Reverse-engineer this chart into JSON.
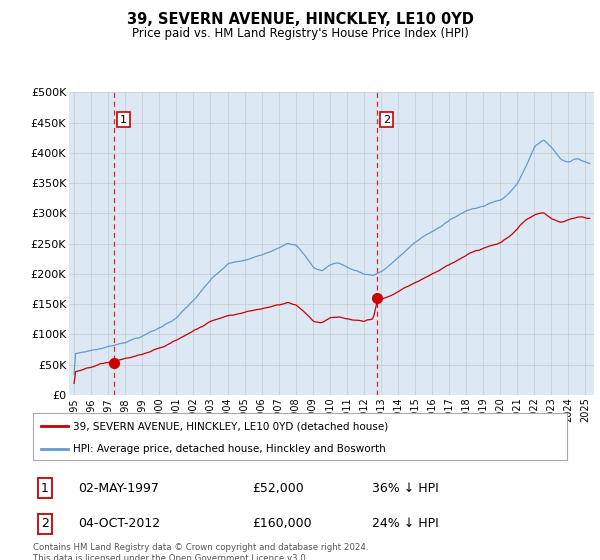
{
  "title": "39, SEVERN AVENUE, HINCKLEY, LE10 0YD",
  "subtitle": "Price paid vs. HM Land Registry's House Price Index (HPI)",
  "background_color": "#dce9f5",
  "plot_bg_color": "#dce9f5",
  "ylim": [
    0,
    500000
  ],
  "yticks": [
    0,
    50000,
    100000,
    150000,
    200000,
    250000,
    300000,
    350000,
    400000,
    450000,
    500000
  ],
  "ytick_labels": [
    "£0",
    "£50K",
    "£100K",
    "£150K",
    "£200K",
    "£250K",
    "£300K",
    "£350K",
    "£400K",
    "£450K",
    "£500K"
  ],
  "xlim_start": 1994.7,
  "xlim_end": 2025.5,
  "sale1_date": 1997.33,
  "sale1_price": 52000,
  "sale2_date": 2012.75,
  "sale2_price": 160000,
  "sale1_table": "02-MAY-1997",
  "sale1_price_str": "£52,000",
  "sale1_pct": "36% ↓ HPI",
  "sale2_table": "04-OCT-2012",
  "sale2_price_str": "£160,000",
  "sale2_pct": "24% ↓ HPI",
  "red_line_color": "#cc0000",
  "blue_line_color": "#6699cc",
  "dashed_color": "#dd2222",
  "marker_color": "#cc0000",
  "legend_label_red": "39, SEVERN AVENUE, HINCKLEY, LE10 0YD (detached house)",
  "legend_label_blue": "HPI: Average price, detached house, Hinckley and Bosworth",
  "footer": "Contains HM Land Registry data © Crown copyright and database right 2024.\nThis data is licensed under the Open Government Licence v3.0.",
  "box_color": "#cc0000",
  "grid_color": "#bbbbbb",
  "xticks": [
    1995,
    1996,
    1997,
    1998,
    1999,
    2000,
    2001,
    2002,
    2003,
    2004,
    2005,
    2006,
    2007,
    2008,
    2009,
    2010,
    2011,
    2012,
    2013,
    2014,
    2015,
    2016,
    2017,
    2018,
    2019,
    2020,
    2021,
    2022,
    2023,
    2024,
    2025
  ]
}
